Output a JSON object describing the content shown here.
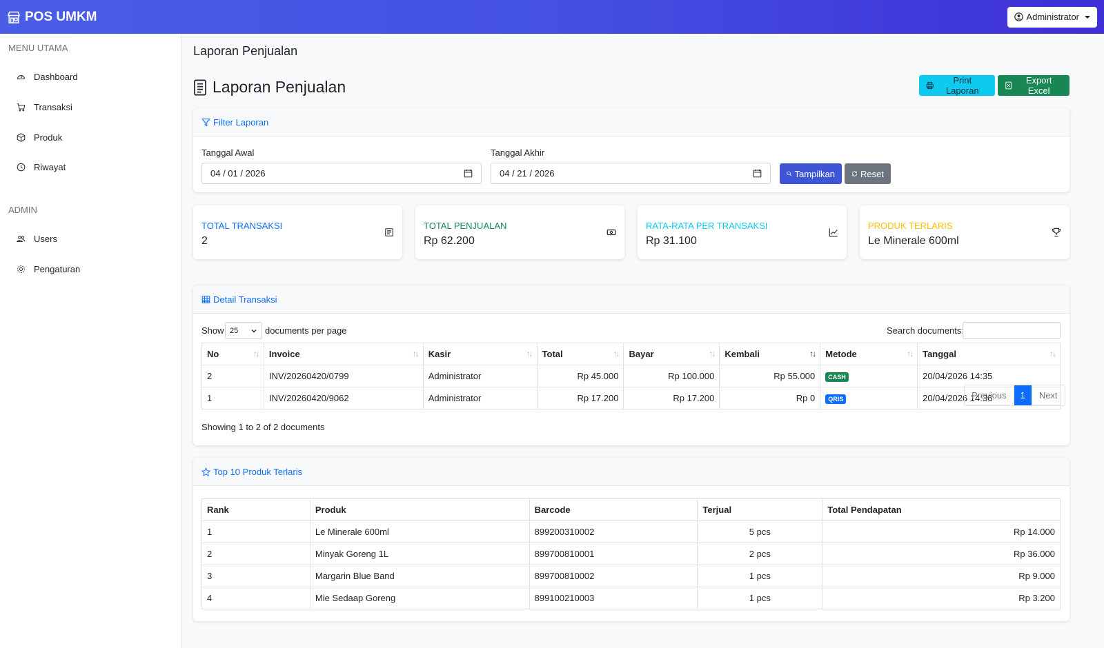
{
  "app": {
    "brand": "POS UMKM",
    "user_menu": "Administrator"
  },
  "sidebar": {
    "sections": [
      {
        "heading": "MENU UTAMA",
        "items": [
          {
            "label": "Dashboard",
            "icon": "speedometer-icon"
          },
          {
            "label": "Transaksi",
            "icon": "cart-icon"
          },
          {
            "label": "Produk",
            "icon": "box-icon"
          },
          {
            "label": "Riwayat",
            "icon": "clock-icon"
          }
        ]
      },
      {
        "heading": "ADMIN",
        "items": [
          {
            "label": "Users",
            "icon": "people-icon"
          },
          {
            "label": "Pengaturan",
            "icon": "gear-icon"
          }
        ]
      }
    ]
  },
  "page": {
    "breadcrumb": "Laporan Penjualan",
    "title": "Laporan Penjualan",
    "print_label": "Print Laporan",
    "export_label": "Export Excel"
  },
  "filter": {
    "header": "Filter Laporan",
    "start_label": "Tanggal Awal",
    "start_value": "04 / 01 / 2026",
    "end_label": "Tanggal Akhir",
    "end_value": "04 / 21 / 2026",
    "show_label": "Tampilkan",
    "reset_label": "Reset"
  },
  "stats": [
    {
      "label": "TOTAL TRANSAKSI",
      "value": "2",
      "color": "#0d6efd",
      "icon": "receipt-icon"
    },
    {
      "label": "TOTAL PENJUALAN",
      "value": "Rp 62.200",
      "color": "#198754",
      "icon": "cash-icon"
    },
    {
      "label": "RATA-RATA PER TRANSAKSI",
      "value": "Rp 31.100",
      "color": "#0dcaf0",
      "icon": "graph-up-icon"
    },
    {
      "label": "PRODUK TERLARIS",
      "value": "Le Minerale 600ml",
      "color": "#ffc107",
      "icon": "trophy-icon"
    }
  ],
  "detail": {
    "header": "Detail Transaksi",
    "show_prefix": "Show",
    "per_page": "25",
    "show_suffix": "documents per page",
    "search_label": "Search documents:",
    "columns": [
      "No",
      "Invoice",
      "Kasir",
      "Total",
      "Bayar",
      "Kembali",
      "Metode",
      "Tanggal"
    ],
    "rows": [
      {
        "no": "2",
        "invoice": "INV/20260420/0799",
        "kasir": "Administrator",
        "total": "Rp 45.000",
        "bayar": "Rp 100.000",
        "kembali": "Rp 55.000",
        "metode": "CASH",
        "metode_color": "#198754",
        "tanggal": "20/04/2026 14:35"
      },
      {
        "no": "1",
        "invoice": "INV/20260420/9062",
        "kasir": "Administrator",
        "total": "Rp 17.200",
        "bayar": "Rp 17.200",
        "kembali": "Rp 0",
        "metode": "QRIS",
        "metode_color": "#0d6efd",
        "tanggal": "20/04/2026 14:36"
      }
    ],
    "info": "Showing 1 to 2 of 2 documents",
    "pager": {
      "prev": "Previous",
      "current": "1",
      "next": "Next"
    }
  },
  "top_products": {
    "header": "Top 10 Produk Terlaris",
    "columns": [
      "Rank",
      "Produk",
      "Barcode",
      "Terjual",
      "Total Pendapatan"
    ],
    "rows": [
      {
        "rank": "1",
        "produk": "Le Minerale 600ml",
        "barcode": "899200310002",
        "terjual": "5 pcs",
        "pendapatan": "Rp 14.000"
      },
      {
        "rank": "2",
        "produk": "Minyak Goreng 1L",
        "barcode": "899700810001",
        "terjual": "2 pcs",
        "pendapatan": "Rp 36.000"
      },
      {
        "rank": "3",
        "produk": "Margarin Blue Band",
        "barcode": "899700810002",
        "terjual": "1 pcs",
        "pendapatan": "Rp 9.000"
      },
      {
        "rank": "4",
        "produk": "Mie Sedaap Goreng",
        "barcode": "899100210003",
        "terjual": "1 pcs",
        "pendapatan": "Rp 3.200"
      }
    ]
  }
}
